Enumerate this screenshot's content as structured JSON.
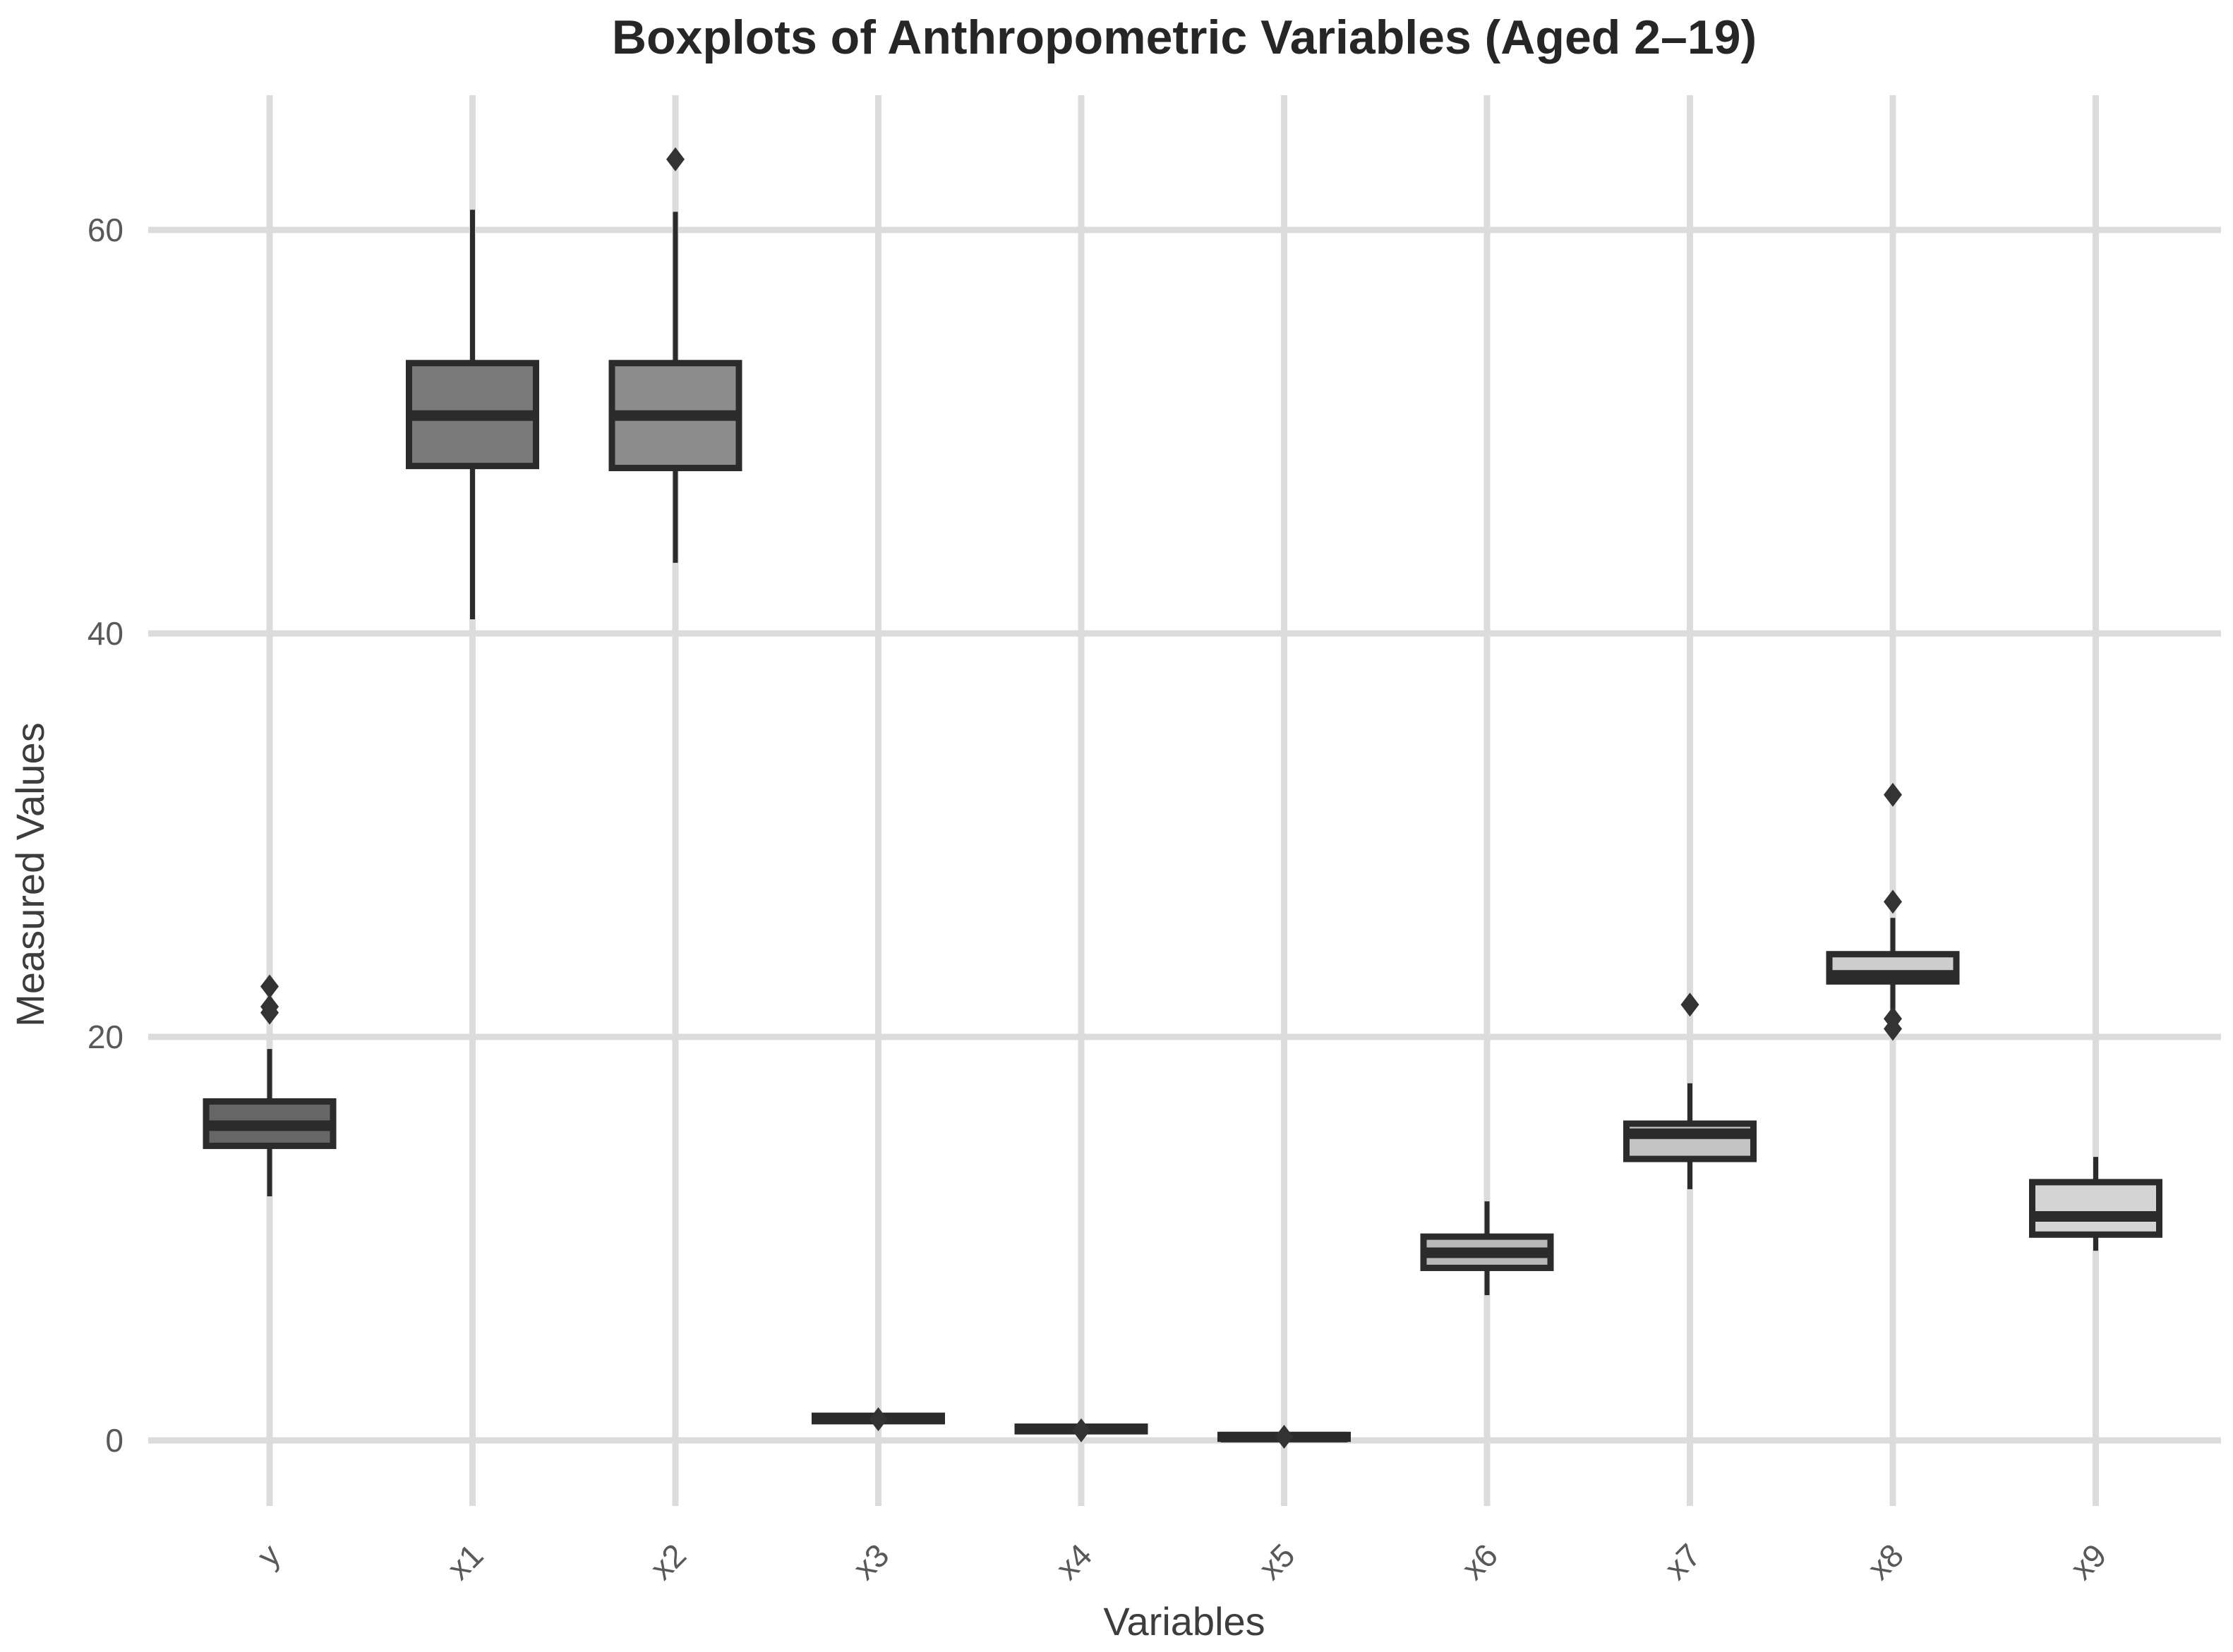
{
  "chart_data": {
    "type": "boxplot",
    "title": "Boxplots of Anthropometric Variables (Aged 2–19)",
    "xlabel": "Variables",
    "ylabel": "Measured Values",
    "categories": [
      "y",
      "x1",
      "x2",
      "x3",
      "x4",
      "x5",
      "x6",
      "x7",
      "x8",
      "x9"
    ],
    "yticks": [
      0,
      20,
      40,
      60
    ],
    "ylim": [
      -2.6,
      66.7
    ],
    "grid": true,
    "legend": "none",
    "series": [
      {
        "label": "y",
        "whisker_low": 12.1,
        "q1": 14.6,
        "median": 15.6,
        "q3": 16.8,
        "whisker_high": 19.4,
        "outliers": [
          21.2,
          21.5,
          22.5
        ],
        "fill": "#666666"
      },
      {
        "label": "x1",
        "whisker_low": 40.7,
        "q1": 48.3,
        "median": 50.8,
        "q3": 53.4,
        "whisker_high": 61.0,
        "outliers": [],
        "fill": "#7a7a7a"
      },
      {
        "label": "x2",
        "whisker_low": 43.5,
        "q1": 48.2,
        "median": 50.8,
        "q3": 53.4,
        "whisker_high": 60.9,
        "outliers": [
          63.5
        ],
        "fill": "#8c8c8c"
      },
      {
        "label": "x3",
        "whisker_low": 0.85,
        "q1": 0.95,
        "median": 1.08,
        "q3": 1.22,
        "whisker_high": 1.32,
        "outliers": [
          1.05
        ],
        "fill": "#9c9c9c"
      },
      {
        "label": "x4",
        "whisker_low": 0.33,
        "q1": 0.45,
        "median": 0.56,
        "q3": 0.68,
        "whisker_high": 0.78,
        "outliers": [
          0.5
        ],
        "fill": "#a6a6a6"
      },
      {
        "label": "x5",
        "whisker_low": 0.0,
        "q1": 0.08,
        "median": 0.16,
        "q3": 0.27,
        "whisker_high": 0.35,
        "outliers": [
          0.18
        ],
        "fill": "#b0b0b0"
      },
      {
        "label": "x6",
        "whisker_low": 7.2,
        "q1": 8.55,
        "median": 9.3,
        "q3": 10.1,
        "whisker_high": 11.85,
        "outliers": [],
        "fill": "#b8b8b8"
      },
      {
        "label": "x7",
        "whisker_low": 12.45,
        "q1": 13.95,
        "median": 15.2,
        "q3": 15.7,
        "whisker_high": 17.7,
        "outliers": [
          21.6
        ],
        "fill": "#c3c3c3"
      },
      {
        "label": "x8",
        "whisker_low": 21.35,
        "q1": 22.75,
        "median": 23.05,
        "q3": 24.1,
        "whisker_high": 25.9,
        "outliers": [
          32.0,
          26.7,
          20.9,
          20.4
        ],
        "fill": "#cdcdcd"
      },
      {
        "label": "x9",
        "whisker_low": 9.4,
        "q1": 10.2,
        "median": 11.1,
        "q3": 12.8,
        "whisker_high": 14.05,
        "outliers": [],
        "fill": "#d4d4d4"
      }
    ],
    "colors": {
      "box_border": "#2b2b2b",
      "median": "#2b2b2b",
      "whisker": "#2b2b2b",
      "outlier": "#333333",
      "gridline": "#dcdcdc",
      "tick_label": "#595959",
      "axis_label": "#3d3d3d",
      "title": "#262626",
      "background": "#ffffff"
    }
  }
}
